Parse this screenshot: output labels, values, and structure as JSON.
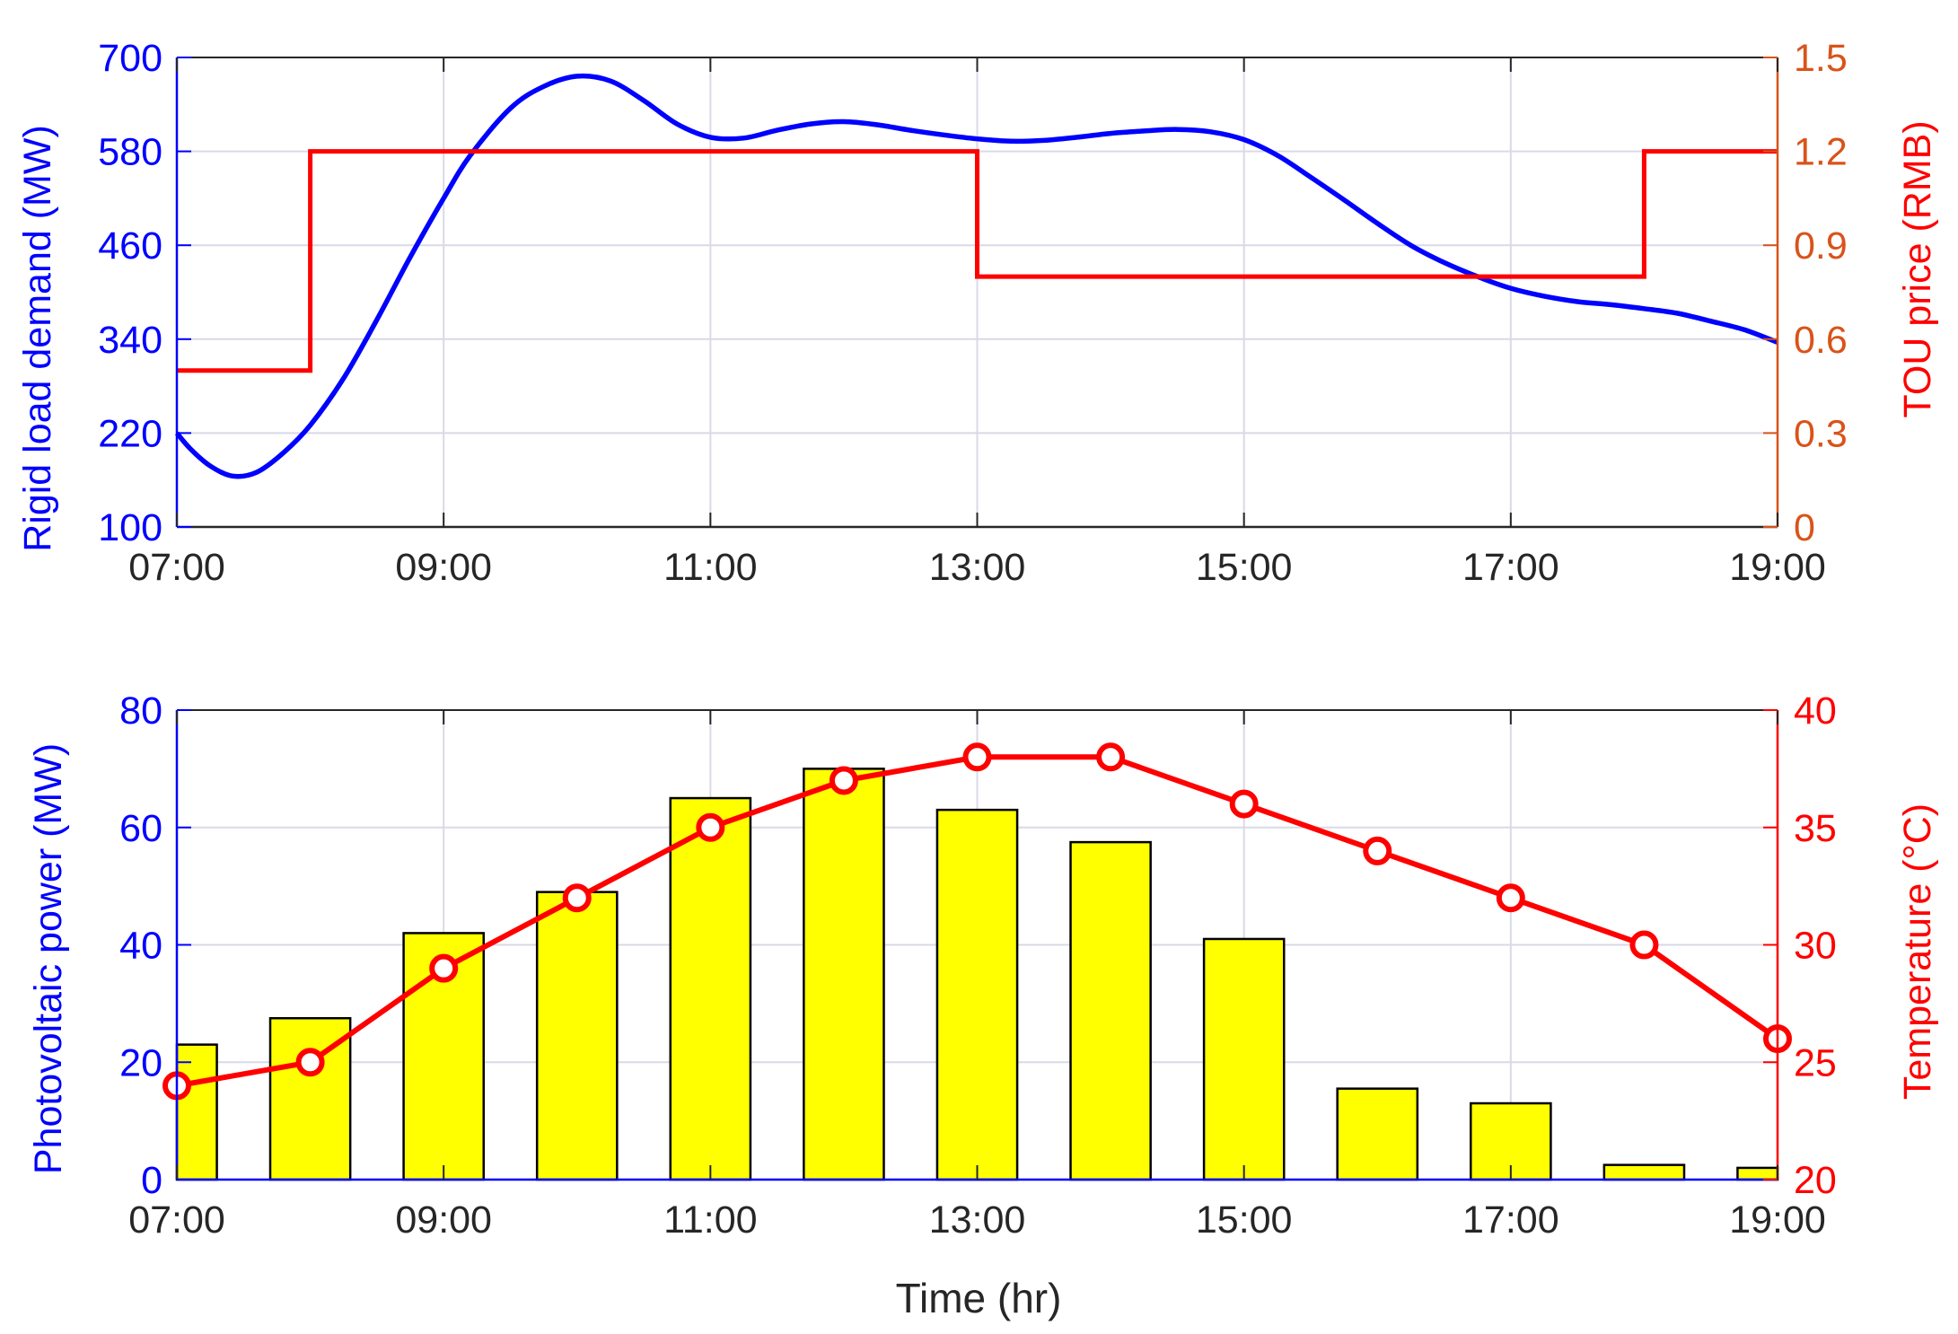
{
  "chart_data": [
    {
      "type": "line",
      "x_ticks": [
        "07:00",
        "09:00",
        "11:00",
        "13:00",
        "15:00",
        "17:00",
        "19:00"
      ],
      "xlim": [
        7,
        19
      ],
      "grid": true,
      "left_axis": {
        "label": "Rigid load demand (MW)",
        "ylim": [
          100,
          700
        ],
        "ticks": [
          "100",
          "220",
          "340",
          "460",
          "580",
          "700"
        ],
        "color": "#0000ff"
      },
      "right_axis": {
        "label": "TOU price (RMB)",
        "ylim": [
          0,
          1.5
        ],
        "ticks": [
          "0",
          "0.3",
          "0.6",
          "0.9",
          "1.2",
          "1.5"
        ],
        "color": "#d95319",
        "label_color": "#ff0000"
      },
      "series": [
        {
          "axis": "left",
          "style": "smooth-line",
          "color": "#0000ff",
          "x": [
            7,
            7.1,
            7.25,
            7.42,
            7.6,
            7.8,
            8,
            8.25,
            8.5,
            8.75,
            9,
            9.2,
            9.5,
            9.75,
            10,
            10.25,
            10.5,
            10.75,
            11,
            11.25,
            11.5,
            11.75,
            12,
            12.25,
            12.5,
            12.75,
            13,
            13.25,
            13.5,
            13.75,
            14,
            14.25,
            14.5,
            14.75,
            15,
            15.25,
            15.5,
            15.75,
            16,
            16.25,
            16.5,
            16.75,
            17,
            17.25,
            17.5,
            17.75,
            18,
            18.25,
            18.5,
            18.75,
            19
          ],
          "y": [
            220,
            200,
            178,
            165,
            170,
            195,
            230,
            290,
            365,
            445,
            520,
            575,
            635,
            663,
            676,
            670,
            645,
            615,
            598,
            597,
            607,
            615,
            618,
            614,
            607,
            601,
            596,
            593,
            594,
            598,
            603,
            606,
            608,
            605,
            595,
            575,
            547,
            518,
            488,
            460,
            438,
            420,
            405,
            395,
            388,
            384,
            379,
            373,
            363,
            352,
            336
          ]
        },
        {
          "axis": "right",
          "style": "step",
          "color": "#ff0000",
          "x": [
            7,
            8,
            8,
            13,
            13,
            18,
            18,
            19
          ],
          "y": [
            0.5,
            0.5,
            1.2,
            1.2,
            0.8,
            0.8,
            1.2,
            1.2
          ]
        }
      ]
    },
    {
      "type": "bar",
      "x_ticks": [
        "07:00",
        "09:00",
        "11:00",
        "13:00",
        "15:00",
        "17:00",
        "19:00"
      ],
      "xlim": [
        7,
        19
      ],
      "grid": true,
      "xlabel": "Time (hr)",
      "left_axis": {
        "label": "Photovoltaic power (MW)",
        "ylim": [
          0,
          80
        ],
        "ticks": [
          "0",
          "20",
          "40",
          "60",
          "80"
        ],
        "color": "#0000ff"
      },
      "right_axis": {
        "label": "Temperature (°C)",
        "ylim": [
          20,
          40
        ],
        "ticks": [
          "20",
          "25",
          "30",
          "35",
          "40"
        ],
        "color": "#ff0000"
      },
      "series": [
        {
          "axis": "left",
          "style": "bar",
          "color": "#ffff00",
          "edge_color": "#000000",
          "x": [
            7,
            8,
            9,
            10,
            11,
            12,
            13,
            14,
            15,
            16,
            17,
            18,
            19
          ],
          "values": [
            23,
            27.5,
            42,
            49,
            65,
            70,
            63,
            57.5,
            41,
            15.5,
            13,
            2.5,
            2
          ]
        },
        {
          "axis": "right",
          "style": "line-marker",
          "color": "#ff0000",
          "x": [
            7,
            8,
            9,
            10,
            11,
            12,
            13,
            14,
            15,
            16,
            17,
            18,
            19
          ],
          "values": [
            24,
            25,
            29,
            32,
            35,
            37,
            38,
            38,
            36,
            34,
            32,
            30,
            26
          ]
        }
      ]
    }
  ]
}
